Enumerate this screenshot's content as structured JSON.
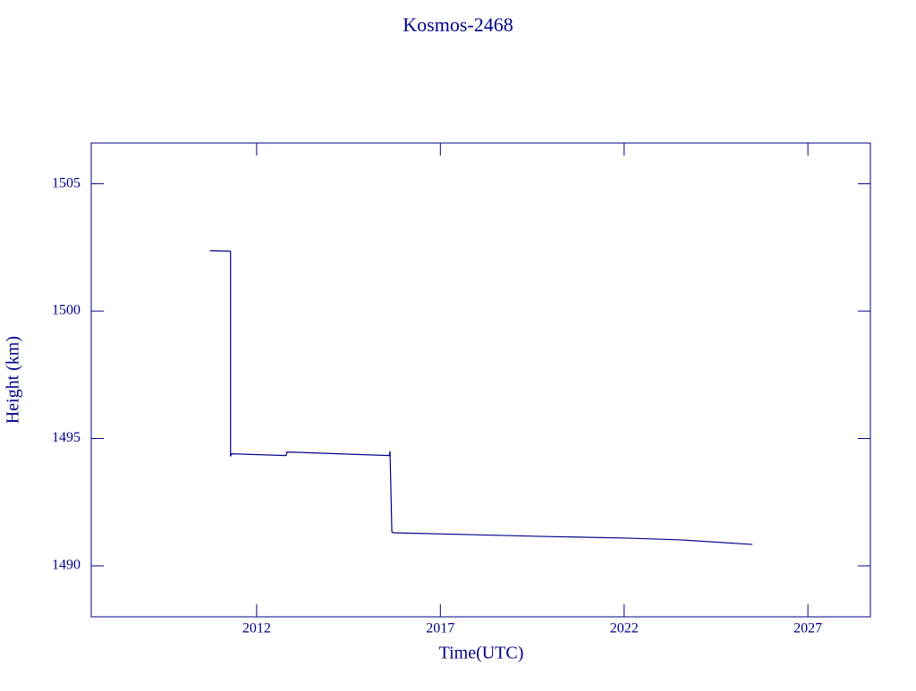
{
  "chart_data": {
    "type": "line",
    "title": "Kosmos-2468",
    "xlabel": "Time(UTC)",
    "ylabel": "Height (km)",
    "series": [
      {
        "name": "Kosmos-2468",
        "color": "#00008b",
        "x": [
          2010.73,
          2011.29,
          2011.29,
          2011.32,
          2012.8,
          2012.83,
          2015.61,
          2015.63,
          2015.68,
          2015.73,
          2017.68,
          2019.63,
          2022.07,
          2023.54,
          2025.49
        ],
        "values": [
          1502.37,
          1502.35,
          1494.3,
          1494.4,
          1494.33,
          1494.47,
          1494.33,
          1494.5,
          1491.33,
          1491.3,
          1491.23,
          1491.16,
          1491.09,
          1491.02,
          1490.84
        ]
      }
    ],
    "xlim": [
      2007.5,
      2028.7
    ],
    "xticks": [
      2012,
      2017,
      2022,
      2027
    ],
    "ylim": [
      1488,
      1506.6
    ],
    "yticks": [
      1490,
      1495,
      1500,
      1505
    ],
    "grid": false
  }
}
